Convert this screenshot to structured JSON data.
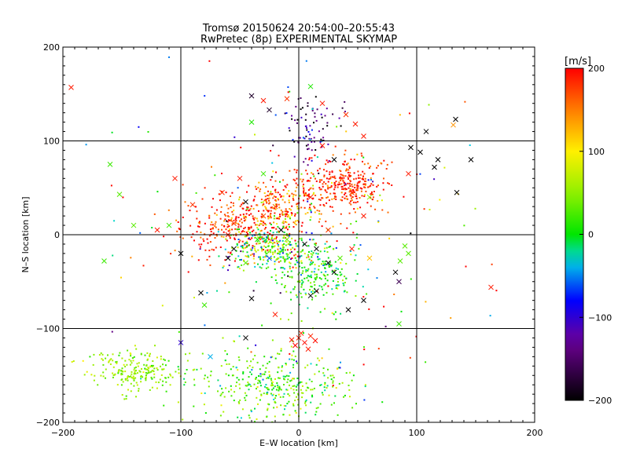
{
  "chart_data": {
    "type": "scatter",
    "title": "Tromsø 20150624 20:54:00–20:55:43",
    "subtitle": "RwPretec (8p) EXPERIMENTAL SKYMAP",
    "xlabel": "E–W location [km]",
    "ylabel": "N–S location [km]",
    "xlim": [
      -200,
      200
    ],
    "ylim": [
      -200,
      200
    ],
    "x_ticks": [
      -200,
      -100,
      0,
      100,
      200
    ],
    "y_ticks": [
      -200,
      -100,
      0,
      100,
      200
    ],
    "x_tick_labels": [
      "−200",
      "−100",
      "0",
      "100",
      "200"
    ],
    "y_tick_labels": [
      "−200",
      "−100",
      "0",
      "100",
      "200"
    ],
    "grid": true,
    "grid_color": "#000000",
    "colorbar": {
      "label": "[m/s]",
      "range": [
        -200,
        200
      ],
      "ticks": [
        200,
        100,
        0,
        -100,
        -200
      ],
      "tick_labels": [
        "200",
        "100",
        "0",
        "−100",
        "−200"
      ],
      "placement": "right",
      "colormap": "rainbow: black at −200, purple, blue at −100, cyan, green at 0, yellow at 100, orange, red at 200"
    },
    "clusters": [
      {
        "center_x": 40,
        "center_y": 55,
        "spread_x": 18,
        "spread_y": 15,
        "velocity": 185,
        "velocity_spread": 25,
        "count": 300
      },
      {
        "center_x": -45,
        "center_y": 10,
        "spread_x": 30,
        "spread_y": 18,
        "velocity": 180,
        "velocity_spread": 35,
        "count": 360
      },
      {
        "center_x": -25,
        "center_y": -15,
        "spread_x": 18,
        "spread_y": 12,
        "velocity": 20,
        "velocity_spread": 60,
        "count": 260
      },
      {
        "center_x": 15,
        "center_y": -40,
        "spread_x": 18,
        "spread_y": 18,
        "velocity": 10,
        "velocity_spread": 30,
        "count": 230
      },
      {
        "center_x": -140,
        "center_y": -145,
        "spread_x": 22,
        "spread_y": 12,
        "velocity": 50,
        "velocity_spread": 20,
        "count": 220
      },
      {
        "center_x": -20,
        "center_y": -160,
        "spread_x": 35,
        "spread_y": 20,
        "velocity": 25,
        "velocity_spread": 35,
        "count": 380
      },
      {
        "center_x": 10,
        "center_y": 110,
        "spread_x": 12,
        "spread_y": 18,
        "velocity": -140,
        "velocity_spread": 50,
        "count": 90
      },
      {
        "center_x": -5,
        "center_y": 35,
        "spread_x": 20,
        "spread_y": 15,
        "velocity": 150,
        "velocity_spread": 60,
        "count": 160
      },
      {
        "center_x": 0,
        "center_y": 0,
        "spread_x": 90,
        "spread_y": 90,
        "velocity": 60,
        "velocity_spread": 140,
        "count": 160
      }
    ],
    "markers_x": [
      {
        "x": -193,
        "y": 157,
        "v": 190
      },
      {
        "x": -160,
        "y": 75,
        "v": 20
      },
      {
        "x": -152,
        "y": 43,
        "v": 30
      },
      {
        "x": -140,
        "y": 10,
        "v": 30
      },
      {
        "x": -165,
        "y": -28,
        "v": 20
      },
      {
        "x": -120,
        "y": 5,
        "v": 190
      },
      {
        "x": -110,
        "y": 10,
        "v": 20
      },
      {
        "x": -105,
        "y": 60,
        "v": 190
      },
      {
        "x": -90,
        "y": 32,
        "v": 180
      },
      {
        "x": -83,
        "y": -62,
        "v": -200
      },
      {
        "x": -80,
        "y": -75,
        "v": 20
      },
      {
        "x": -75,
        "y": -130,
        "v": -40
      },
      {
        "x": -100,
        "y": -20,
        "v": -200
      },
      {
        "x": -60,
        "y": -25,
        "v": -200
      },
      {
        "x": -45,
        "y": 35,
        "v": -200
      },
      {
        "x": -40,
        "y": 148,
        "v": -180
      },
      {
        "x": -30,
        "y": 143,
        "v": 190
      },
      {
        "x": -25,
        "y": 133,
        "v": -180
      },
      {
        "x": -40,
        "y": 120,
        "v": 10
      },
      {
        "x": -10,
        "y": 145,
        "v": 180
      },
      {
        "x": 10,
        "y": 158,
        "v": 10
      },
      {
        "x": 20,
        "y": 140,
        "v": 190
      },
      {
        "x": 40,
        "y": 128,
        "v": 180
      },
      {
        "x": 48,
        "y": 118,
        "v": 190
      },
      {
        "x": 55,
        "y": 105,
        "v": 190
      },
      {
        "x": 95,
        "y": 93,
        "v": -200
      },
      {
        "x": 103,
        "y": 88,
        "v": -200
      },
      {
        "x": 108,
        "y": 110,
        "v": -200
      },
      {
        "x": 118,
        "y": 80,
        "v": -200
      },
      {
        "x": 115,
        "y": 72,
        "v": -200
      },
      {
        "x": 133,
        "y": 123,
        "v": -200
      },
      {
        "x": 131,
        "y": 117,
        "v": 140
      },
      {
        "x": 146,
        "y": 80,
        "v": -200
      },
      {
        "x": 134,
        "y": 45,
        "v": -200
      },
      {
        "x": 93,
        "y": 65,
        "v": 190
      },
      {
        "x": 90,
        "y": -12,
        "v": 30
      },
      {
        "x": 93,
        "y": -20,
        "v": 30
      },
      {
        "x": 86,
        "y": -28,
        "v": 30
      },
      {
        "x": 85,
        "y": -95,
        "v": 20
      },
      {
        "x": 82,
        "y": -40,
        "v": -200
      },
      {
        "x": 85,
        "y": -50,
        "v": -160
      },
      {
        "x": 163,
        "y": -56,
        "v": 190
      },
      {
        "x": 55,
        "y": -70,
        "v": -200
      },
      {
        "x": 42,
        "y": -80,
        "v": -200
      },
      {
        "x": 10,
        "y": -65,
        "v": -200
      },
      {
        "x": 15,
        "y": -60,
        "v": -200
      },
      {
        "x": -40,
        "y": -68,
        "v": -200
      },
      {
        "x": -45,
        "y": -110,
        "v": -200
      },
      {
        "x": -100,
        "y": -115,
        "v": -100
      },
      {
        "x": -20,
        "y": -85,
        "v": 190
      },
      {
        "x": 0,
        "y": -110,
        "v": 190
      },
      {
        "x": 5,
        "y": -115,
        "v": 195
      },
      {
        "x": 10,
        "y": -108,
        "v": 185
      },
      {
        "x": -3,
        "y": -118,
        "v": 200
      },
      {
        "x": 8,
        "y": -122,
        "v": 190
      },
      {
        "x": 14,
        "y": -113,
        "v": 195
      },
      {
        "x": 2,
        "y": -105,
        "v": 180
      },
      {
        "x": -6,
        "y": -112,
        "v": 190
      },
      {
        "x": -60,
        "y": 0,
        "v": 190
      },
      {
        "x": -55,
        "y": 12,
        "v": 180
      },
      {
        "x": -30,
        "y": 20,
        "v": 170
      },
      {
        "x": -20,
        "y": 30,
        "v": 160
      },
      {
        "x": -15,
        "y": 5,
        "v": -200
      },
      {
        "x": -10,
        "y": -5,
        "v": 40
      },
      {
        "x": 5,
        "y": -10,
        "v": -200
      },
      {
        "x": 15,
        "y": -15,
        "v": -200
      },
      {
        "x": 25,
        "y": -30,
        "v": -200
      },
      {
        "x": 35,
        "y": -25,
        "v": 30
      },
      {
        "x": 30,
        "y": -40,
        "v": -200
      },
      {
        "x": 45,
        "y": -15,
        "v": 190
      },
      {
        "x": 60,
        "y": -25,
        "v": 120
      },
      {
        "x": 55,
        "y": 20,
        "v": 190
      },
      {
        "x": 25,
        "y": 5,
        "v": 180
      },
      {
        "x": -35,
        "y": -5,
        "v": 10
      },
      {
        "x": -25,
        "y": -25,
        "v": -60
      },
      {
        "x": -45,
        "y": -30,
        "v": 30
      },
      {
        "x": -55,
        "y": -15,
        "v": -200
      },
      {
        "x": 10,
        "y": 40,
        "v": 190
      },
      {
        "x": 30,
        "y": 80,
        "v": -200
      },
      {
        "x": -50,
        "y": 60,
        "v": 190
      },
      {
        "x": -65,
        "y": 45,
        "v": 180
      },
      {
        "x": 45,
        "y": 45,
        "v": 190
      },
      {
        "x": 60,
        "y": 40,
        "v": 50
      },
      {
        "x": -30,
        "y": 65,
        "v": 20
      },
      {
        "x": 20,
        "y": 95,
        "v": 190
      }
    ]
  }
}
